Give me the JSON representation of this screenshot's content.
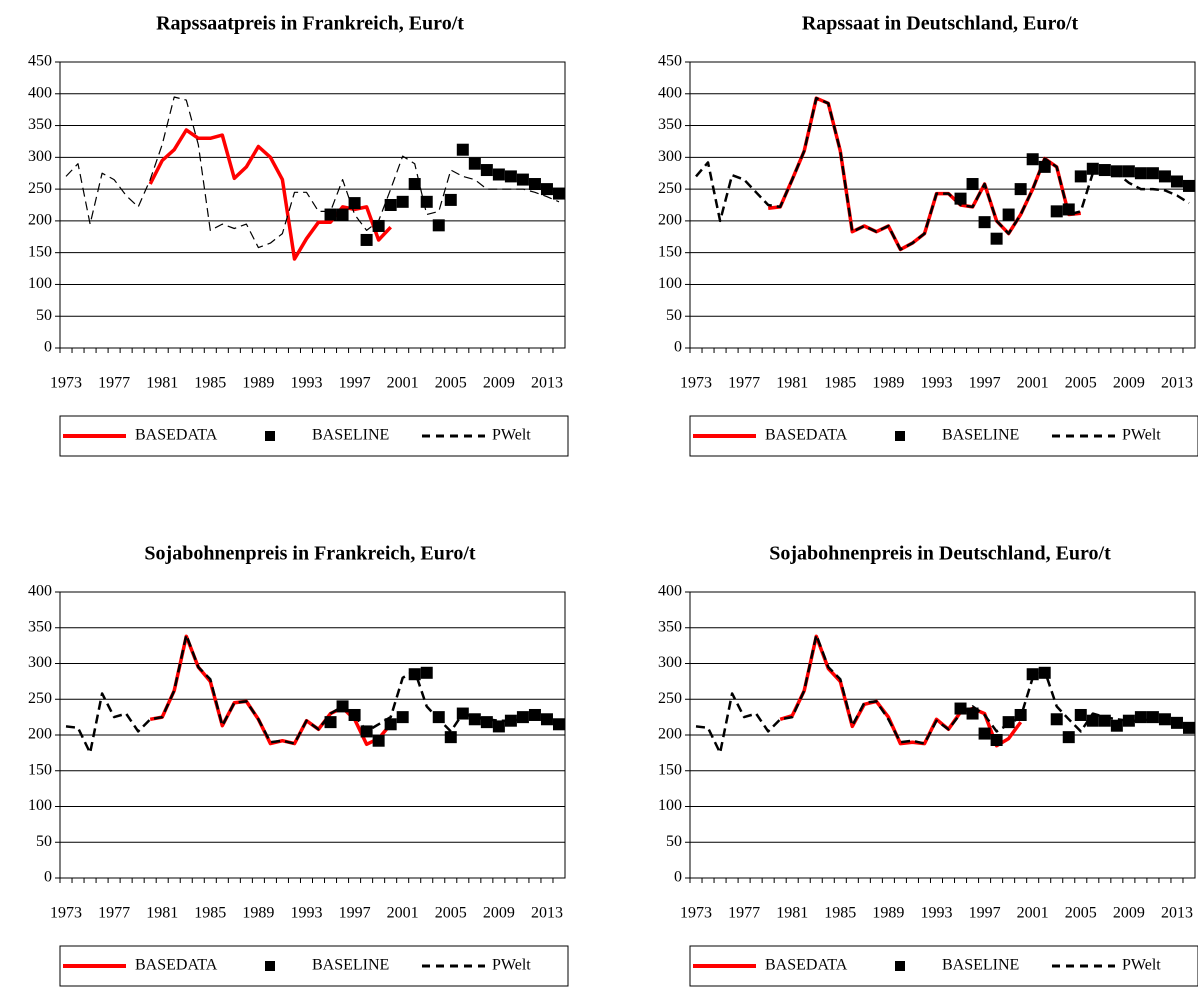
{
  "chart_data": [
    {
      "type": "line",
      "title": "Rapssaatpreis in Frankreich, Euro/t",
      "categories": [
        "1973",
        null,
        null,
        null,
        "1977",
        null,
        null,
        null,
        "1981",
        null,
        null,
        null,
        "1985",
        null,
        null,
        null,
        "1989",
        null,
        null,
        null,
        "1993",
        null,
        null,
        null,
        "1997",
        null,
        null,
        null,
        "2001",
        null,
        null,
        null,
        "2005",
        null,
        null,
        null,
        "2009",
        null,
        null,
        null,
        "2013",
        null
      ],
      "ylim": [
        0,
        450
      ],
      "yticks": [
        0,
        50,
        100,
        150,
        200,
        250,
        300,
        350,
        400,
        450
      ],
      "grid": true,
      "series": [
        {
          "name": "BASEDATA",
          "color": "#ff0000",
          "style": "solid",
          "values": [
            null,
            null,
            null,
            null,
            null,
            null,
            null,
            258,
            295,
            312,
            343,
            330,
            330,
            335,
            267,
            285,
            317,
            300,
            265,
            140,
            172,
            198,
            198,
            222,
            218,
            222,
            170,
            190,
            null,
            null,
            null,
            null,
            null,
            null,
            null,
            null,
            null,
            null,
            null,
            null,
            null,
            null
          ]
        },
        {
          "name": "BASELINE",
          "color": "#000000",
          "style": "square",
          "values": [
            null,
            null,
            null,
            null,
            null,
            null,
            null,
            null,
            null,
            null,
            null,
            null,
            null,
            null,
            null,
            null,
            null,
            null,
            null,
            null,
            null,
            null,
            210,
            210,
            228,
            170,
            192,
            225,
            230,
            258,
            230,
            193,
            233,
            312,
            290,
            280,
            273,
            270,
            265,
            258,
            250,
            243
          ]
        },
        {
          "name": "PWelt",
          "color": "#000000",
          "style": "dashed",
          "values": [
            270,
            290,
            195,
            275,
            265,
            240,
            222,
            265,
            320,
            395,
            390,
            320,
            185,
            195,
            188,
            195,
            158,
            165,
            180,
            245,
            245,
            215,
            215,
            265,
            210,
            185,
            200,
            250,
            302,
            290,
            210,
            215,
            280,
            270,
            265,
            250,
            250,
            250,
            250,
            245,
            238,
            230
          ]
        }
      ]
    },
    {
      "type": "line",
      "title": "Rapssaat in Deutschland, Euro/t",
      "categories": [
        "1973",
        null,
        null,
        null,
        "1977",
        null,
        null,
        null,
        "1981",
        null,
        null,
        null,
        "1985",
        null,
        null,
        null,
        "1989",
        null,
        null,
        null,
        "1993",
        null,
        null,
        null,
        "1997",
        null,
        null,
        null,
        "2001",
        null,
        null,
        null,
        "2005",
        null,
        null,
        null,
        "2009",
        null,
        null,
        null,
        "2013",
        null
      ],
      "ylim": [
        0,
        450
      ],
      "yticks": [
        0,
        50,
        100,
        150,
        200,
        250,
        300,
        350,
        400,
        450
      ],
      "grid": true,
      "series": [
        {
          "name": "BASEDATA",
          "color": "#ff0000",
          "style": "solid",
          "values": [
            null,
            null,
            null,
            null,
            null,
            null,
            220,
            222,
            265,
            310,
            393,
            385,
            310,
            183,
            192,
            183,
            192,
            155,
            165,
            180,
            243,
            243,
            225,
            222,
            258,
            200,
            180,
            210,
            250,
            298,
            285,
            210,
            212,
            null,
            null,
            null,
            null,
            null,
            null,
            null,
            null,
            null
          ]
        },
        {
          "name": "BASELINE",
          "color": "#000000",
          "style": "square",
          "values": [
            null,
            null,
            null,
            null,
            null,
            null,
            null,
            null,
            null,
            null,
            null,
            null,
            null,
            null,
            null,
            null,
            null,
            null,
            null,
            null,
            null,
            null,
            235,
            258,
            198,
            172,
            210,
            250,
            297,
            285,
            215,
            218,
            270,
            282,
            280,
            278,
            278,
            275,
            275,
            270,
            262,
            255
          ]
        },
        {
          "name": "PWelt",
          "color": "#000000",
          "style": "dashed",
          "values": [
            270,
            292,
            200,
            272,
            265,
            245,
            225,
            222,
            265,
            310,
            393,
            385,
            310,
            183,
            192,
            183,
            192,
            155,
            165,
            180,
            243,
            243,
            225,
            222,
            258,
            200,
            180,
            210,
            250,
            298,
            285,
            210,
            215,
            275,
            275,
            275,
            260,
            250,
            250,
            248,
            240,
            228
          ]
        }
      ]
    },
    {
      "type": "line",
      "title": "Sojabohnenpreis in Frankreich, Euro/t",
      "categories": [
        "1973",
        null,
        null,
        null,
        "1977",
        null,
        null,
        null,
        "1981",
        null,
        null,
        null,
        "1985",
        null,
        null,
        null,
        "1989",
        null,
        null,
        null,
        "1993",
        null,
        null,
        null,
        "1997",
        null,
        null,
        null,
        "2001",
        null,
        null,
        null,
        "2005",
        null,
        null,
        null,
        "2009",
        null,
        null,
        null,
        "2013",
        null
      ],
      "ylim": [
        0,
        400
      ],
      "yticks": [
        0,
        50,
        100,
        150,
        200,
        250,
        300,
        350,
        400
      ],
      "grid": true,
      "series": [
        {
          "name": "BASEDATA",
          "color": "#ff0000",
          "style": "solid",
          "values": [
            null,
            null,
            null,
            null,
            null,
            null,
            null,
            222,
            225,
            262,
            338,
            295,
            275,
            213,
            245,
            247,
            222,
            188,
            192,
            188,
            220,
            208,
            230,
            238,
            222,
            187,
            195,
            215,
            null,
            null,
            null,
            null,
            null,
            null,
            null,
            null,
            null,
            null,
            null,
            null,
            null,
            null
          ]
        },
        {
          "name": "BASELINE",
          "color": "#000000",
          "style": "square",
          "values": [
            null,
            null,
            null,
            null,
            null,
            null,
            null,
            null,
            null,
            null,
            null,
            null,
            null,
            null,
            null,
            null,
            null,
            null,
            null,
            null,
            null,
            null,
            218,
            240,
            228,
            205,
            192,
            215,
            225,
            285,
            287,
            225,
            197,
            230,
            222,
            218,
            212,
            220,
            225,
            228,
            222,
            215
          ]
        },
        {
          "name": "PWelt",
          "color": "#000000",
          "style": "dashed",
          "values": [
            212,
            210,
            175,
            258,
            225,
            230,
            205,
            222,
            225,
            262,
            340,
            295,
            278,
            213,
            245,
            247,
            222,
            190,
            192,
            188,
            220,
            208,
            230,
            240,
            228,
            205,
            215,
            225,
            280,
            290,
            240,
            222,
            205,
            230,
            225,
            222,
            220,
            220,
            222,
            225,
            220,
            215
          ]
        }
      ]
    },
    {
      "type": "line",
      "title": "Sojabohnenpreis in Deutschland, Euro/t",
      "categories": [
        "1973",
        null,
        null,
        null,
        "1977",
        null,
        null,
        null,
        "1981",
        null,
        null,
        null,
        "1985",
        null,
        null,
        null,
        "1989",
        null,
        null,
        null,
        "1993",
        null,
        null,
        null,
        "1997",
        null,
        null,
        null,
        "2001",
        null,
        null,
        null,
        "2005",
        null,
        null,
        null,
        "2009",
        null,
        null,
        null,
        "2013",
        null
      ],
      "ylim": [
        0,
        400
      ],
      "yticks": [
        0,
        50,
        100,
        150,
        200,
        250,
        300,
        350,
        400
      ],
      "grid": true,
      "series": [
        {
          "name": "BASEDATA",
          "color": "#ff0000",
          "style": "solid",
          "values": [
            null,
            null,
            null,
            null,
            null,
            null,
            null,
            222,
            227,
            262,
            338,
            293,
            275,
            212,
            243,
            247,
            225,
            188,
            190,
            188,
            222,
            208,
            232,
            237,
            230,
            185,
            195,
            218,
            null,
            null,
            null,
            null,
            null,
            null,
            null,
            null,
            null,
            null,
            null,
            null,
            null,
            null
          ]
        },
        {
          "name": "BASELINE",
          "color": "#000000",
          "style": "square",
          "values": [
            null,
            null,
            null,
            null,
            null,
            null,
            null,
            null,
            null,
            null,
            null,
            null,
            null,
            null,
            null,
            null,
            null,
            null,
            null,
            null,
            null,
            null,
            237,
            230,
            202,
            193,
            218,
            228,
            285,
            287,
            222,
            197,
            228,
            220,
            220,
            213,
            220,
            225,
            225,
            222,
            217,
            210
          ]
        },
        {
          "name": "PWelt",
          "color": "#000000",
          "style": "dashed",
          "values": [
            212,
            210,
            175,
            258,
            225,
            230,
            205,
            222,
            225,
            262,
            340,
            295,
            278,
            213,
            245,
            247,
            222,
            190,
            192,
            188,
            220,
            208,
            230,
            240,
            228,
            205,
            215,
            225,
            280,
            290,
            240,
            222,
            205,
            230,
            225,
            222,
            220,
            220,
            222,
            225,
            220,
            215
          ]
        }
      ]
    }
  ]
}
